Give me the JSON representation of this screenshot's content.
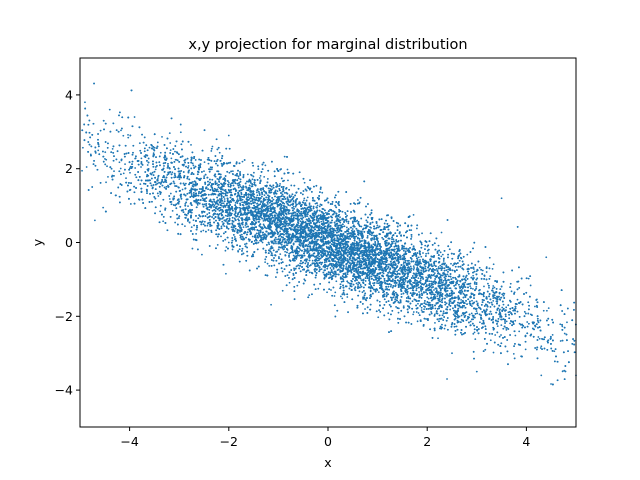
{
  "chart_data": {
    "type": "scatter",
    "title": "x,y projection for marginal distribution",
    "xlabel": "x",
    "ylabel": "y",
    "xlim": [
      -5,
      5
    ],
    "ylim": [
      -5,
      5
    ],
    "xticks": [
      -4,
      -2,
      0,
      2,
      4
    ],
    "yticks": [
      -4,
      -2,
      0,
      2,
      4
    ],
    "xtick_labels": [
      "−4",
      "−2",
      "0",
      "2",
      "4"
    ],
    "ytick_labels": [
      "−4",
      "−2",
      "0",
      "2",
      "4"
    ],
    "grid": false,
    "marker_color": "#1f77b4",
    "distribution": {
      "kind": "bivariate-normal",
      "mean": [
        0,
        0
      ],
      "std_x": 2.0,
      "std_y": 1.2,
      "correlation": -0.88
    },
    "sample_points": [
      {
        "x": -4.9,
        "y": 3.8
      },
      {
        "x": -4.4,
        "y": 3.6
      },
      {
        "x": -3.9,
        "y": 3.4
      },
      {
        "x": -2.0,
        "y": 2.9
      },
      {
        "x": -2.0,
        "y": 0.0
      },
      {
        "x": 0.0,
        "y": 0.0
      },
      {
        "x": 2.0,
        "y": -1.0
      },
      {
        "x": 2.5,
        "y": -3.0
      },
      {
        "x": 3.0,
        "y": -3.5
      },
      {
        "x": 4.4,
        "y": -0.4
      },
      {
        "x": 4.3,
        "y": -3.6
      },
      {
        "x": 5.0,
        "y": -3.6
      },
      {
        "x": 3.5,
        "y": 1.2
      },
      {
        "x": -4.7,
        "y": 0.6
      },
      {
        "x": 2.4,
        "y": -3.7
      }
    ]
  }
}
